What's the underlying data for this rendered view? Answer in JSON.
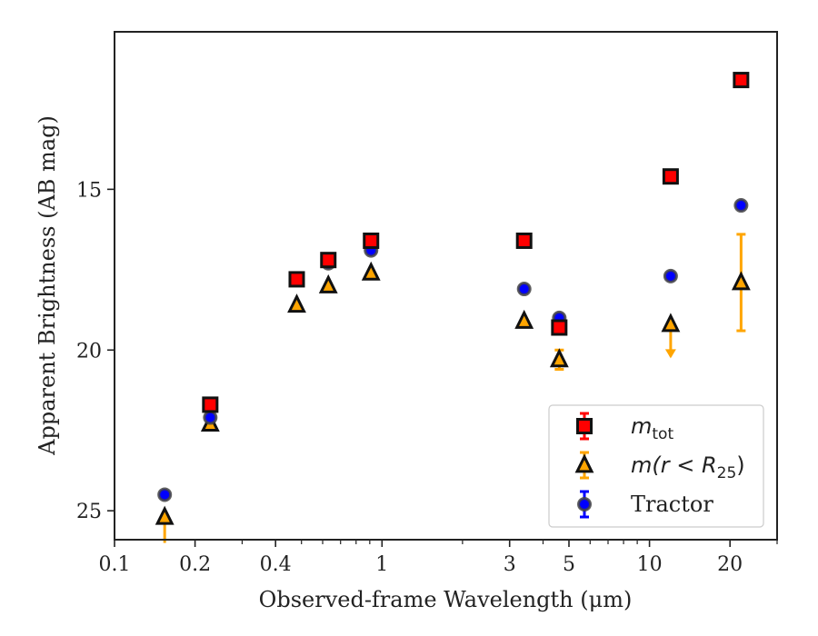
{
  "chart_data": {
    "type": "scatter",
    "title": "",
    "xlabel": "Observed-frame Wavelength (μm)",
    "ylabel": "Apparent Brightness (AB mag)",
    "x_scale": "log",
    "xlim": [
      0.1,
      30
    ],
    "ylim": [
      25.9,
      10.1
    ],
    "y_inverted": true,
    "grid": false,
    "legend_position": "lower right",
    "x_ticks": [
      {
        "value": 0.1,
        "label": "0.1"
      },
      {
        "value": 0.2,
        "label": "0.2"
      },
      {
        "value": 0.4,
        "label": "0.4"
      },
      {
        "value": 1,
        "label": "1"
      },
      {
        "value": 3,
        "label": "3"
      },
      {
        "value": 5,
        "label": "5"
      },
      {
        "value": 10,
        "label": "10"
      },
      {
        "value": 20,
        "label": "20"
      }
    ],
    "y_ticks": [
      {
        "value": 15,
        "label": "15"
      },
      {
        "value": 20,
        "label": "20"
      },
      {
        "value": 25,
        "label": "25"
      }
    ],
    "series": [
      {
        "name": "m_tot",
        "legend_main": "m",
        "legend_sub": "tot",
        "marker": "square",
        "color": "#ff0000",
        "edge_color": "#111111",
        "err_color": "#ff0000",
        "points": [
          {
            "x": 0.228,
            "y": 21.7
          },
          {
            "x": 0.48,
            "y": 17.8
          },
          {
            "x": 0.63,
            "y": 17.2
          },
          {
            "x": 0.91,
            "y": 16.6
          },
          {
            "x": 3.4,
            "y": 16.6
          },
          {
            "x": 4.6,
            "y": 19.3
          },
          {
            "x": 12.0,
            "y": 14.6
          },
          {
            "x": 22.0,
            "y": 11.6
          }
        ]
      },
      {
        "name": "m(r < R_25)",
        "legend_main": "m(r < R",
        "legend_sub": "25",
        "legend_tail": ")",
        "marker": "triangle",
        "color": "#ffa500",
        "edge_color": "#111111",
        "err_color": "#ffa500",
        "points": [
          {
            "x": 0.154,
            "y": 25.2,
            "upper_limit": true,
            "err_low": 25.2,
            "err_high": 26.0
          },
          {
            "x": 0.228,
            "y": 22.3
          },
          {
            "x": 0.48,
            "y": 18.6
          },
          {
            "x": 0.63,
            "y": 18.0
          },
          {
            "x": 0.91,
            "y": 17.6
          },
          {
            "x": 3.4,
            "y": 19.1
          },
          {
            "x": 4.6,
            "y": 20.3,
            "err_low": 20.0,
            "err_high": 20.6
          },
          {
            "x": 12.0,
            "y": 19.2,
            "upper_limit": true,
            "err_low": 19.2,
            "err_high": 20.2
          },
          {
            "x": 22.0,
            "y": 17.9,
            "err_low": 16.4,
            "err_high": 19.4
          }
        ]
      },
      {
        "name": "Tractor",
        "legend_main": "Tractor",
        "marker": "circle",
        "color": "#0000ff",
        "edge_color": "#444444",
        "err_color": "#0000ff",
        "points": [
          {
            "x": 0.154,
            "y": 24.5
          },
          {
            "x": 0.228,
            "y": 22.1
          },
          {
            "x": 0.48,
            "y": 17.8
          },
          {
            "x": 0.63,
            "y": 17.3
          },
          {
            "x": 0.91,
            "y": 16.9
          },
          {
            "x": 3.4,
            "y": 18.1
          },
          {
            "x": 4.6,
            "y": 19.0
          },
          {
            "x": 12.0,
            "y": 17.7
          },
          {
            "x": 22.0,
            "y": 15.5
          }
        ]
      }
    ]
  }
}
